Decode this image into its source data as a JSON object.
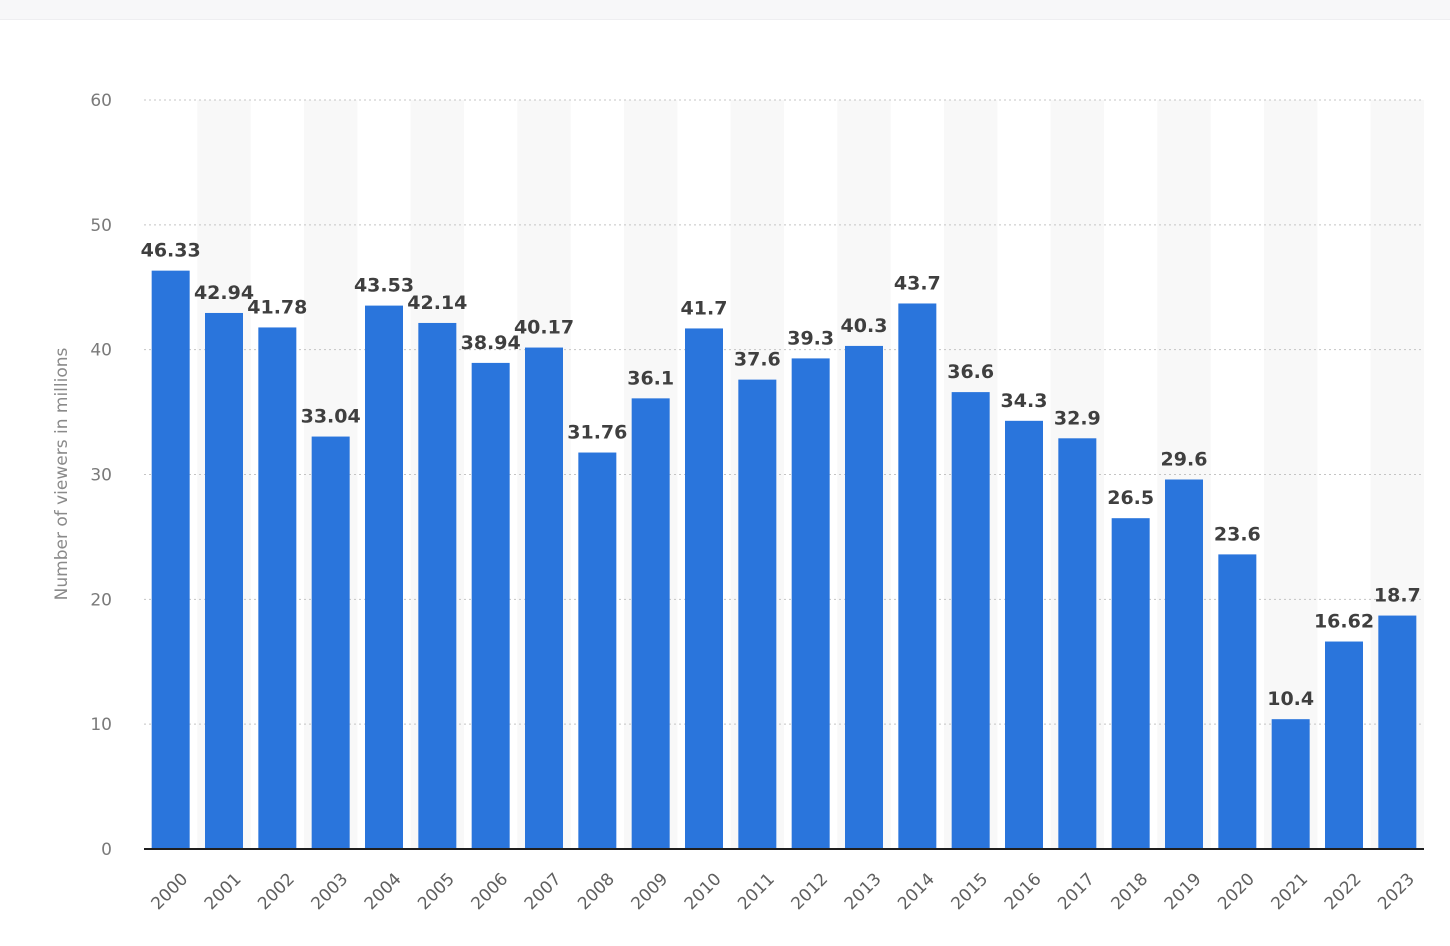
{
  "chart_data": {
    "type": "bar",
    "title": "",
    "xlabel": "",
    "ylabel": "Number of viewers in millions",
    "ylim": [
      0,
      60
    ],
    "yticks": [
      0,
      10,
      20,
      30,
      40,
      50,
      60
    ],
    "grid": true,
    "legend": "none",
    "bar_color": "#2a75dc",
    "categories": [
      "2000",
      "2001",
      "2002",
      "2003",
      "2004",
      "2005",
      "2006",
      "2007",
      "2008",
      "2009",
      "2010",
      "2011",
      "2012",
      "2013",
      "2014",
      "2015",
      "2016",
      "2017",
      "2018",
      "2019",
      "2020",
      "2021",
      "2022",
      "2023"
    ],
    "values": [
      46.33,
      42.94,
      41.78,
      33.04,
      43.53,
      42.14,
      38.94,
      40.17,
      31.76,
      36.1,
      41.7,
      37.6,
      39.3,
      40.3,
      43.7,
      36.6,
      34.3,
      32.9,
      26.5,
      29.6,
      23.6,
      10.4,
      16.62,
      18.7
    ],
    "value_labels": [
      "46.33",
      "42.94",
      "41.78",
      "33.04",
      "43.53",
      "42.14",
      "38.94",
      "40.17",
      "31.76",
      "36.1",
      "41.7",
      "37.6",
      "39.3",
      "40.3",
      "43.7",
      "36.6",
      "34.3",
      "32.9",
      "26.5",
      "29.6",
      "23.6",
      "10.4",
      "16.62",
      "18.7"
    ]
  }
}
